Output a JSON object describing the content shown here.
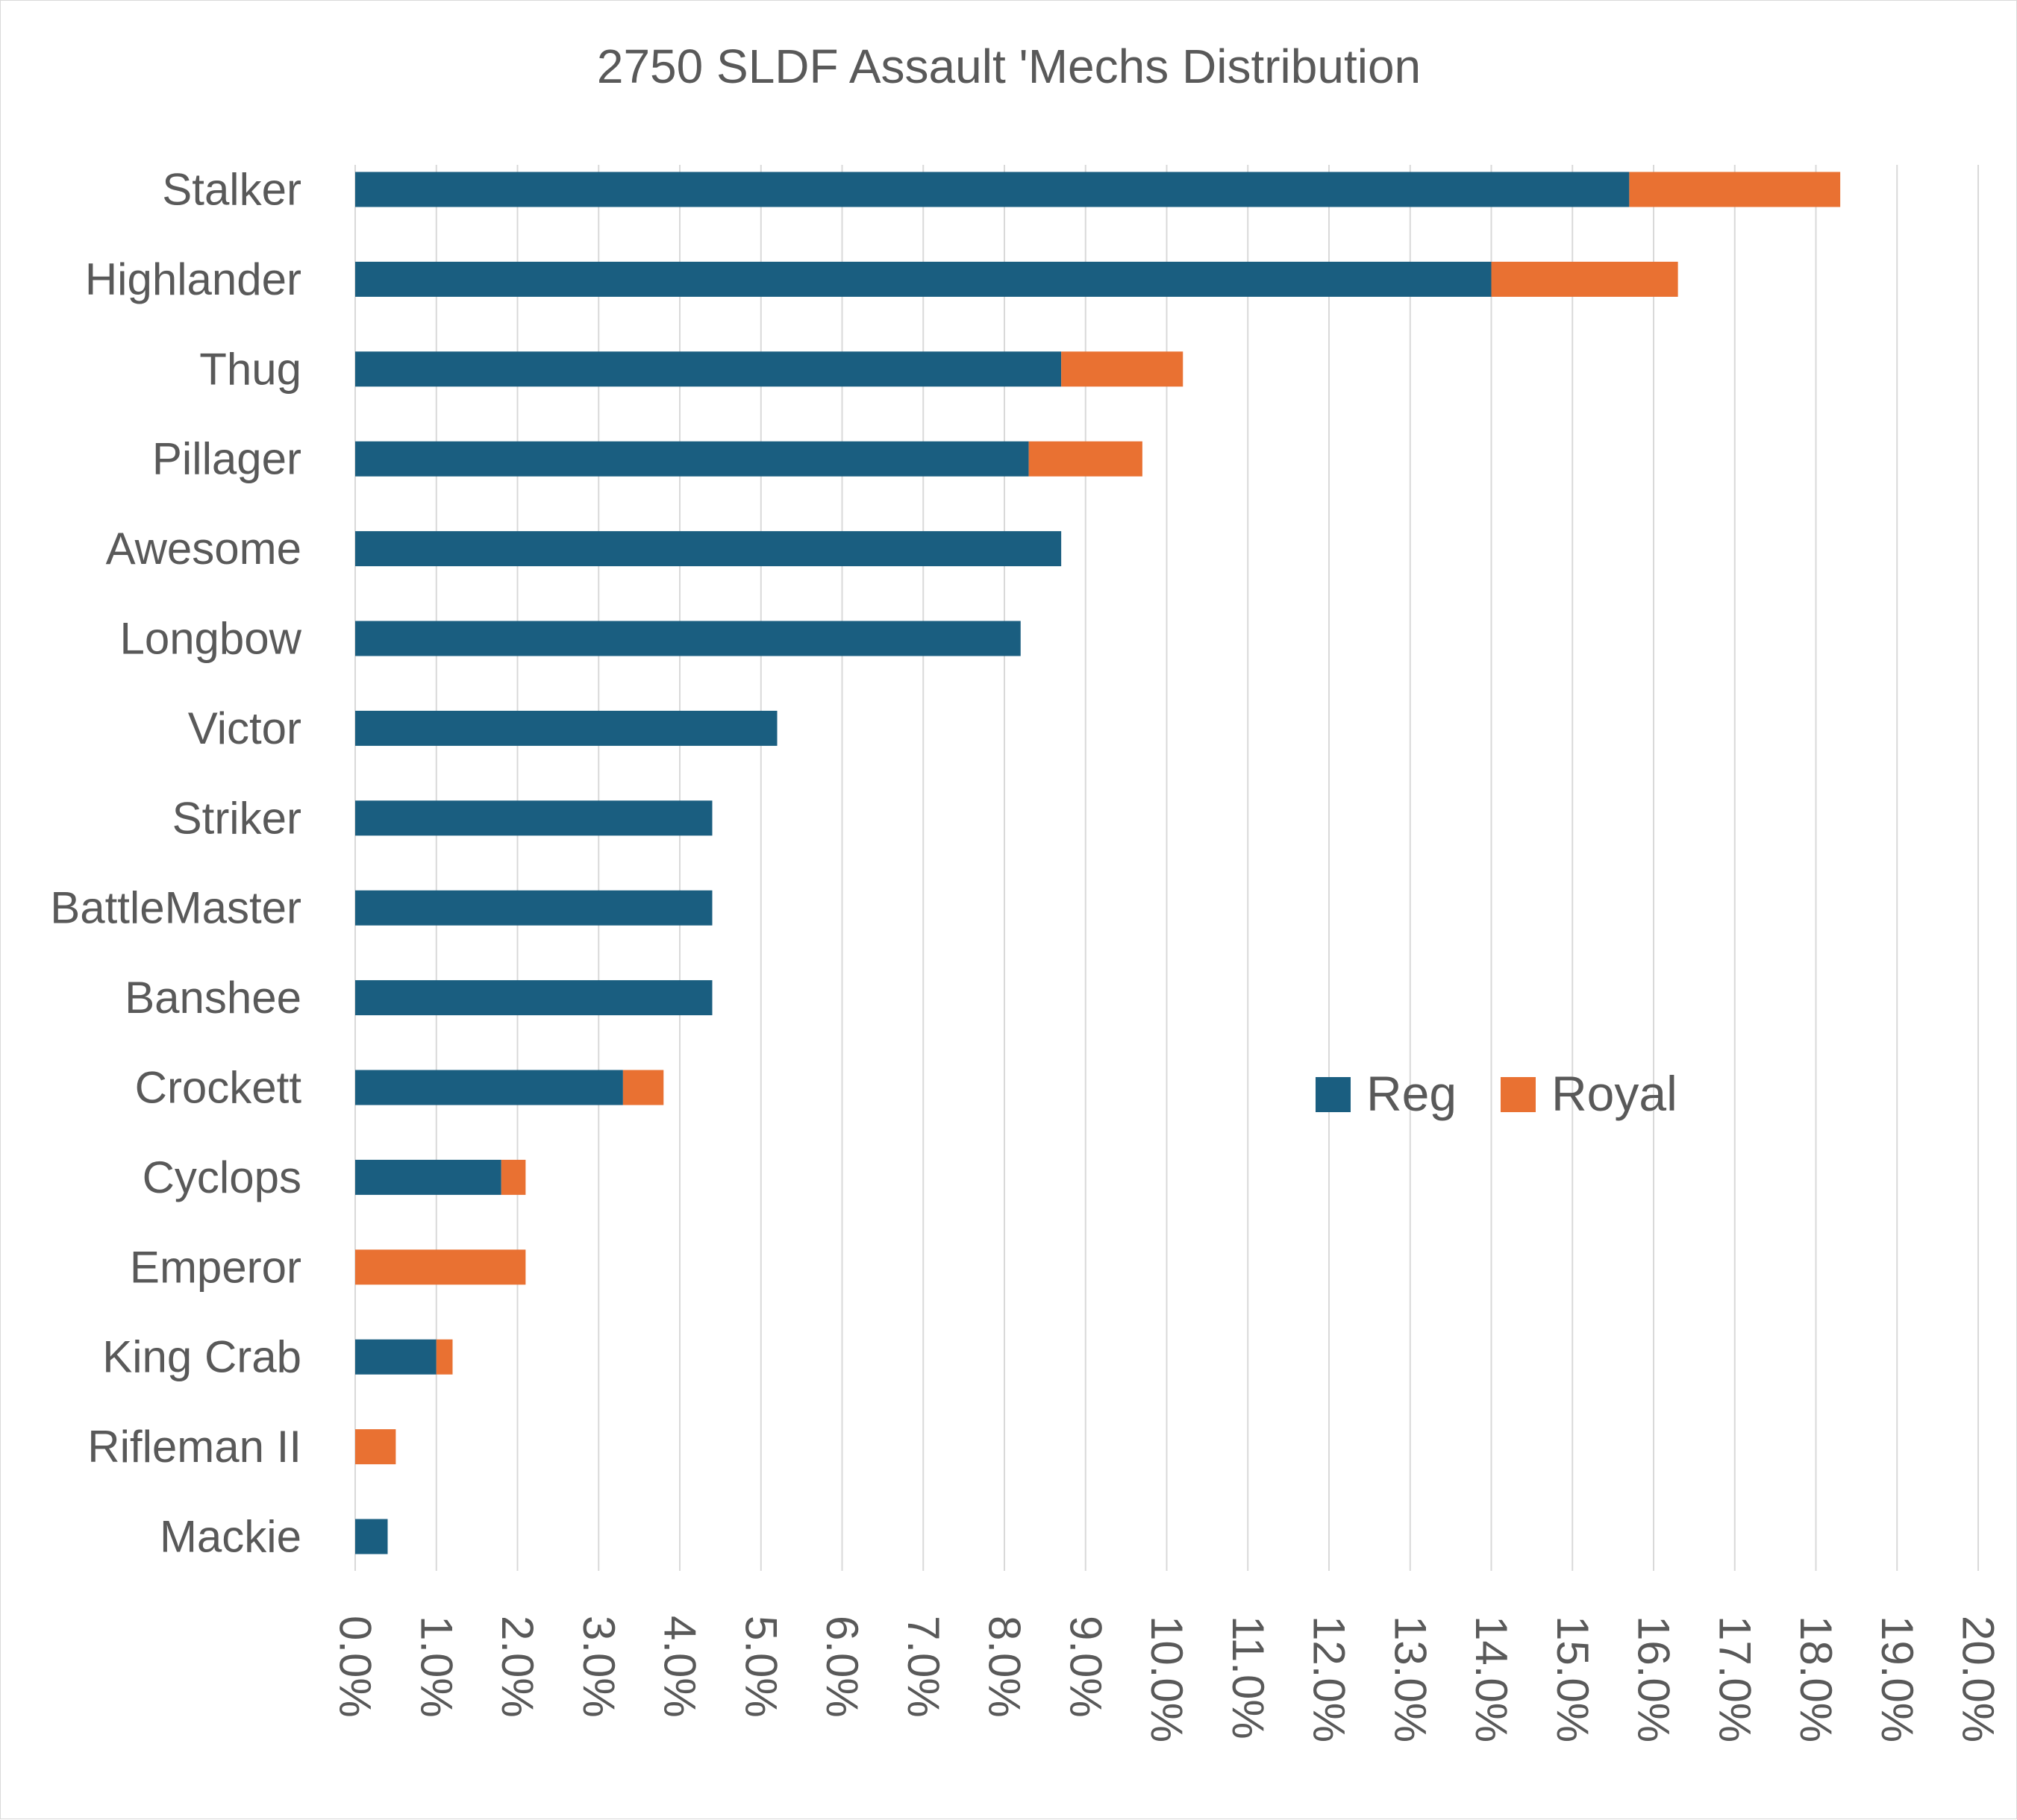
{
  "chart_data": {
    "type": "bar",
    "orientation": "horizontal",
    "stacked": true,
    "title": "2750 SLDF Assault 'Mechs Distribution",
    "categories": [
      "Stalker",
      "Highlander",
      "Thug",
      "Pillager",
      "Awesome",
      "Longbow",
      "Victor",
      "Striker",
      "BattleMaster",
      "Banshee",
      "Crockett",
      "Cyclops",
      "Emperor",
      "King Crab",
      "Rifleman II",
      "Mackie"
    ],
    "series": [
      {
        "name": "Reg",
        "color": "#1a5e80",
        "values": [
          15.7,
          14.0,
          8.7,
          8.3,
          8.7,
          8.2,
          5.2,
          4.4,
          4.4,
          4.4,
          3.3,
          1.8,
          0.0,
          1.0,
          0.0,
          0.4
        ]
      },
      {
        "name": "Royal",
        "color": "#e97132",
        "values": [
          2.6,
          2.3,
          1.5,
          1.4,
          0.0,
          0.0,
          0.0,
          0.0,
          0.0,
          0.0,
          0.5,
          0.3,
          2.1,
          0.2,
          0.5,
          0.0
        ]
      }
    ],
    "x_ticks": [
      "0.0%",
      "1.0%",
      "2.0%",
      "3.0%",
      "4.0%",
      "5.0%",
      "6.0%",
      "7.0%",
      "8.0%",
      "9.0%",
      "10.0%",
      "11.0%",
      "12.0%",
      "13.0%",
      "14.0%",
      "15.0%",
      "16.0%",
      "17.0%",
      "18.0%",
      "19.0%",
      "20.0%"
    ],
    "xlim": [
      0,
      20
    ],
    "grid": "vertical",
    "legend": {
      "position": "center-right",
      "entries": [
        "Reg",
        "Royal"
      ]
    }
  }
}
